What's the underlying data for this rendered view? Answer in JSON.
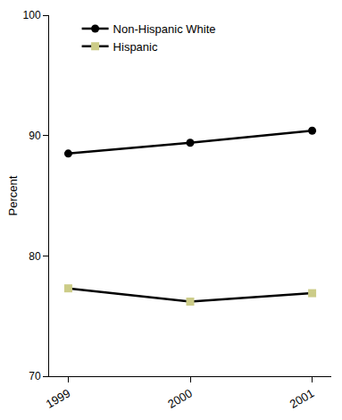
{
  "chart_data": {
    "type": "line",
    "categories": [
      "1999",
      "2000",
      "2001"
    ],
    "series": [
      {
        "name": "Non-Hispanic White",
        "color": "#000000",
        "marker": "circle",
        "line_style": "solid",
        "values": [
          88.5,
          89.4,
          90.4
        ]
      },
      {
        "name": "Hispanic",
        "color": "#cccc88",
        "marker": "square",
        "line_style": "solid",
        "values": [
          77.3,
          76.2,
          76.9
        ]
      }
    ],
    "y_label": "Percent",
    "ylim": [
      70,
      100
    ],
    "yticks": [
      70,
      80,
      90,
      100
    ],
    "grid": false,
    "legend": "top left"
  }
}
